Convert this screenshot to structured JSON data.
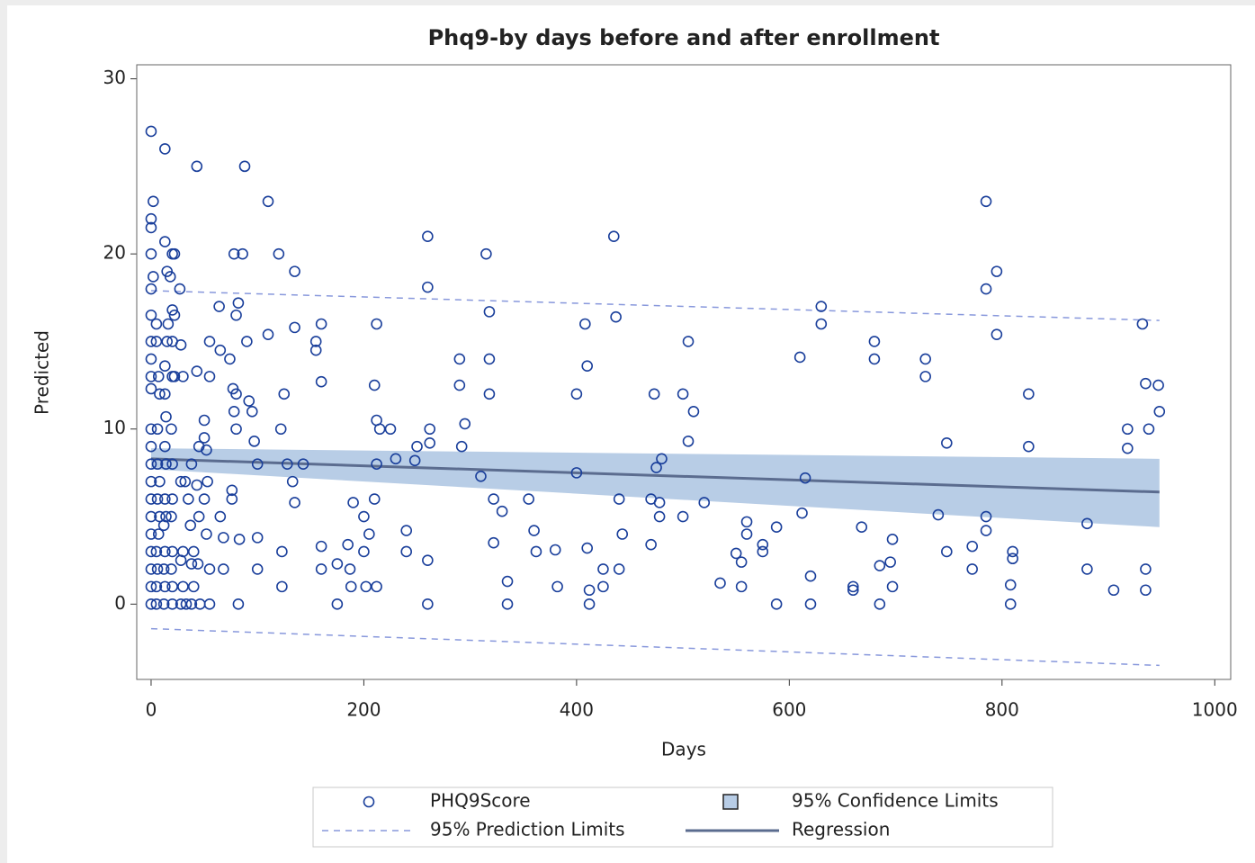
{
  "chart_data": {
    "type": "scatter",
    "title": "Phq9-by days before and after enrollment",
    "x_label": "Days",
    "y_label": "Predicted",
    "xlim": [
      -13.5,
      1015
    ],
    "ylim": [
      -4.3,
      30.8
    ],
    "xticks": [
      0,
      200,
      400,
      600,
      800,
      1000
    ],
    "yticks": [
      0,
      10,
      20,
      30
    ],
    "grid": false,
    "series": [
      {
        "name": "PHQ9Score",
        "kind": "scatter",
        "color": "#1a3f9b",
        "x": [
          0,
          2,
          0,
          0,
          0,
          0,
          2,
          0,
          0,
          0,
          0,
          0,
          0,
          0,
          0,
          0,
          0,
          0,
          0,
          0,
          0,
          0,
          0,
          5,
          5,
          7,
          8,
          6,
          6,
          8,
          6,
          8,
          7,
          5,
          6,
          5,
          5,
          13,
          13,
          15,
          16,
          15,
          13,
          13,
          14,
          13,
          14,
          13,
          14,
          12,
          13,
          12,
          13,
          12,
          20,
          22,
          18,
          20,
          22,
          20,
          20,
          22,
          19,
          20,
          20,
          19,
          20,
          19,
          20,
          20,
          27,
          28,
          30,
          28,
          32,
          30,
          28,
          30,
          28,
          33,
          38,
          35,
          37,
          40,
          38,
          40,
          38,
          43,
          43,
          45,
          43,
          45,
          44,
          46,
          50,
          50,
          52,
          53,
          50,
          52,
          55,
          55,
          55,
          55,
          64,
          65,
          65,
          68,
          68,
          77,
          78,
          80,
          80,
          74,
          78,
          86,
          82,
          80,
          83,
          82,
          76,
          76,
          88,
          90,
          92,
          95,
          97,
          100,
          100,
          100,
          110,
          110,
          120,
          125,
          122,
          128,
          123,
          123,
          135,
          135,
          133,
          135,
          143,
          155,
          155,
          160,
          160,
          160,
          160,
          175,
          175,
          185,
          187,
          188,
          190,
          200,
          200,
          202,
          205,
          210,
          212,
          212,
          215,
          212,
          210,
          212,
          225,
          230,
          240,
          240,
          250,
          248,
          260,
          260,
          262,
          262,
          260,
          260,
          290,
          290,
          292,
          295,
          310,
          315,
          318,
          318,
          318,
          322,
          322,
          330,
          335,
          335,
          355,
          360,
          362,
          380,
          382,
          400,
          400,
          408,
          410,
          410,
          412,
          412,
          425,
          425,
          435,
          437,
          440,
          440,
          443,
          470,
          470,
          473,
          475,
          478,
          478,
          480,
          500,
          500,
          505,
          505,
          510,
          520,
          535,
          550,
          555,
          555,
          560,
          560,
          575,
          575,
          588,
          588,
          610,
          612,
          615,
          620,
          620,
          630,
          630,
          660,
          660,
          668,
          680,
          680,
          685,
          685,
          695,
          697,
          697,
          728,
          728,
          740,
          748,
          748,
          772,
          772,
          785,
          785,
          785,
          785,
          795,
          795,
          808,
          808,
          810,
          810,
          825,
          825,
          880,
          880,
          905,
          918,
          918,
          932,
          935,
          935,
          935,
          938,
          947,
          948
        ],
        "values": [
          27,
          23,
          22,
          21.5,
          20,
          18,
          18.7,
          16.5,
          15,
          14,
          13,
          12.3,
          10,
          9,
          8,
          7,
          6,
          5,
          4,
          3,
          2,
          1,
          0,
          16,
          15,
          13,
          12,
          10,
          8,
          7,
          6,
          5,
          4,
          3,
          2,
          1,
          0,
          26,
          20.7,
          19,
          16,
          15,
          13.6,
          12,
          10.7,
          9,
          8,
          6,
          5,
          4.5,
          3,
          2,
          1,
          0,
          20,
          20,
          18.7,
          16.8,
          16.5,
          15,
          13,
          13,
          10,
          8,
          6,
          5,
          3,
          2,
          1,
          0,
          18,
          14.8,
          13,
          7,
          7,
          3,
          2.5,
          1,
          0,
          0,
          8,
          6,
          4.5,
          3,
          2.3,
          1,
          0,
          25,
          13.3,
          9,
          6.8,
          5,
          2.3,
          0,
          10.5,
          9.5,
          8.8,
          7,
          6,
          4,
          2,
          0,
          15,
          13,
          17,
          14.5,
          5,
          3.8,
          2,
          12.3,
          11,
          12,
          10,
          14,
          20,
          20,
          17.2,
          16.5,
          3.7,
          0,
          6.5,
          6,
          25,
          15,
          11.6,
          11,
          9.3,
          8,
          3.8,
          2,
          23,
          15.4,
          20,
          12,
          10,
          8,
          3,
          1,
          19,
          15.8,
          7,
          5.8,
          8,
          15,
          14.5,
          16,
          12.7,
          3.3,
          2,
          2.3,
          0,
          3.4,
          2,
          1,
          5.8,
          5,
          3,
          1,
          4,
          12.5,
          16,
          10.5,
          10,
          8,
          6,
          1,
          10,
          8.3,
          4.2,
          3,
          9,
          8.2,
          21,
          18.1,
          10,
          9.2,
          2.5,
          0,
          14,
          12.5,
          9,
          10.3,
          7.3,
          20,
          16.7,
          14,
          12,
          3.5,
          6,
          5.3,
          1.3,
          0,
          6,
          4.2,
          3,
          3.1,
          1,
          12,
          7.5,
          16,
          13.6,
          3.2,
          0.8,
          0,
          2,
          1,
          21,
          16.4,
          6,
          2,
          4,
          6,
          3.4,
          12,
          7.8,
          5.8,
          5,
          8.3,
          12,
          5,
          15,
          9.3,
          11,
          5.8,
          1.2,
          2.9,
          2.4,
          1,
          4.7,
          4,
          3.4,
          3,
          4.4,
          0,
          14.1,
          5.2,
          7.2,
          1.6,
          0,
          17,
          16,
          1,
          0.8,
          4.4,
          15,
          14,
          2.2,
          0,
          2.4,
          3.7,
          1,
          14,
          13,
          5.1,
          9.2,
          3,
          3.3,
          2,
          23,
          18,
          5,
          4.2,
          19,
          15.4,
          1.1,
          0,
          3,
          2.6,
          12,
          9,
          4.6,
          2,
          0.8,
          10,
          8.9,
          16,
          12.6,
          2,
          0.8,
          10,
          12.5,
          11
        ]
      },
      {
        "name": "95% Confidence Limits",
        "kind": "band",
        "color": "#b8cde6",
        "x": [
          0,
          948
        ],
        "lower": [
          7.7,
          4.4
        ],
        "upper": [
          8.9,
          8.3
        ]
      },
      {
        "name": "95% Prediction Limits",
        "kind": "limits",
        "color": "#8898dc",
        "x": [
          0,
          948
        ],
        "lower": [
          -1.4,
          -3.5
        ],
        "upper": [
          17.9,
          16.2
        ]
      },
      {
        "name": "Regression",
        "kind": "line",
        "color": "#5b6c8f",
        "x": [
          0,
          948
        ],
        "values": [
          8.3,
          6.4
        ]
      }
    ]
  }
}
